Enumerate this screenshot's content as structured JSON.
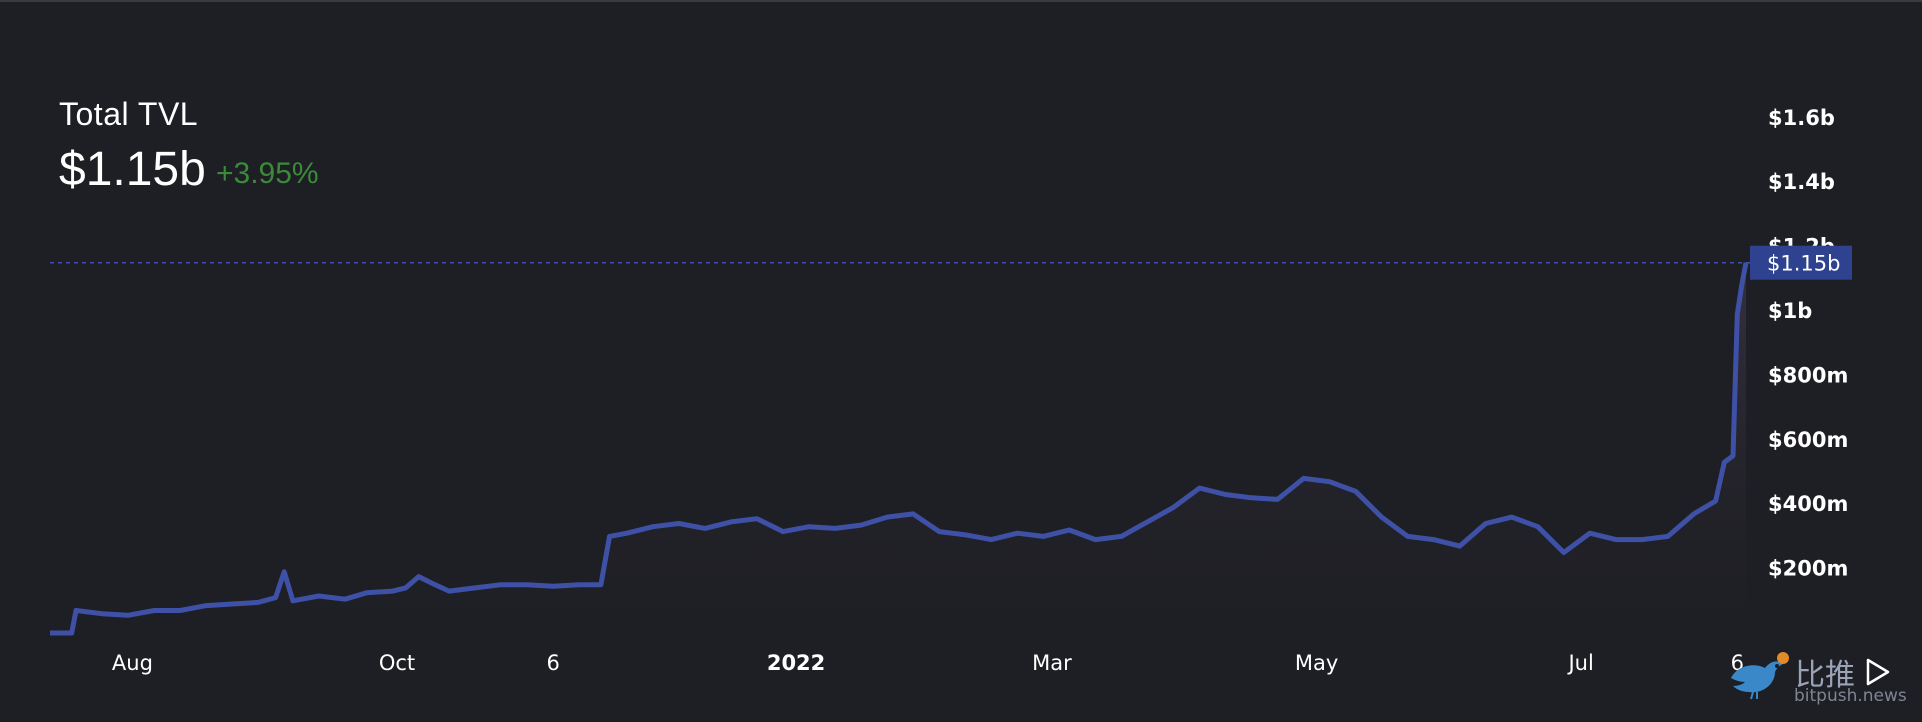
{
  "header": {
    "title": "Total TVL",
    "value": "$1.15b",
    "change": "+3.95%"
  },
  "colors": {
    "background": "#1e1f24",
    "line": "#3e51a6",
    "marker_bg": "#2f4290",
    "change_positive": "#3a8a3a",
    "axis_text": "#ffffff"
  },
  "watermark": {
    "text": "比推",
    "url": "bitpush.news",
    "logo_icon": "bird-logo-icon"
  },
  "controls": {
    "play_icon": "play-icon"
  },
  "chart_data": {
    "type": "area",
    "title": "Total TVL",
    "xlabel": "",
    "ylabel": "",
    "ylim": [
      0,
      1700000000
    ],
    "grid": false,
    "y_axis_position": "right",
    "y_ticks": [
      "$200m",
      "$400m",
      "$600m",
      "$800m",
      "$1b",
      "$1.2b",
      "$1.4b",
      "$1.6b"
    ],
    "y_tick_values": [
      200000000,
      400000000,
      600000000,
      800000000,
      1000000000,
      1200000000,
      1400000000,
      1600000000
    ],
    "x_ticks": [
      {
        "label": "Aug",
        "date": "2021-08-01",
        "bold": false
      },
      {
        "label": "Oct",
        "date": "2021-10-01",
        "bold": false
      },
      {
        "label": "6",
        "date": "2021-11-06",
        "bold": false
      },
      {
        "label": "2022",
        "date": "2022-01-01",
        "bold": true
      },
      {
        "label": "Mar",
        "date": "2022-03-01",
        "bold": false
      },
      {
        "label": "May",
        "date": "2022-05-01",
        "bold": false
      },
      {
        "label": "Jul",
        "date": "2022-07-01",
        "bold": false
      },
      {
        "label": "6",
        "date": "2022-08-06",
        "bold": false
      }
    ],
    "x_range": [
      "2021-07-13",
      "2022-08-08"
    ],
    "current_marker": {
      "label": "$1.15b",
      "value": 1150000000
    },
    "series": [
      {
        "points": [
          [
            "2021-07-13",
            0
          ],
          [
            "2021-07-18",
            0
          ],
          [
            "2021-07-19",
            70000000
          ],
          [
            "2021-07-25",
            60000000
          ],
          [
            "2021-07-31",
            55000000
          ],
          [
            "2021-08-06",
            70000000
          ],
          [
            "2021-08-12",
            70000000
          ],
          [
            "2021-08-18",
            85000000
          ],
          [
            "2021-08-24",
            90000000
          ],
          [
            "2021-08-30",
            95000000
          ],
          [
            "2021-09-03",
            110000000
          ],
          [
            "2021-09-05",
            190000000
          ],
          [
            "2021-09-07",
            100000000
          ],
          [
            "2021-09-13",
            115000000
          ],
          [
            "2021-09-19",
            105000000
          ],
          [
            "2021-09-24",
            125000000
          ],
          [
            "2021-09-30",
            130000000
          ],
          [
            "2021-10-03",
            140000000
          ],
          [
            "2021-10-06",
            175000000
          ],
          [
            "2021-10-09",
            155000000
          ],
          [
            "2021-10-13",
            130000000
          ],
          [
            "2021-10-19",
            140000000
          ],
          [
            "2021-10-25",
            150000000
          ],
          [
            "2021-10-31",
            150000000
          ],
          [
            "2021-11-06",
            145000000
          ],
          [
            "2021-11-12",
            150000000
          ],
          [
            "2021-11-17",
            150000000
          ],
          [
            "2021-11-19",
            300000000
          ],
          [
            "2021-11-23",
            310000000
          ],
          [
            "2021-11-29",
            330000000
          ],
          [
            "2021-12-05",
            340000000
          ],
          [
            "2021-12-11",
            325000000
          ],
          [
            "2021-12-17",
            345000000
          ],
          [
            "2021-12-23",
            355000000
          ],
          [
            "2021-12-29",
            315000000
          ],
          [
            "2022-01-04",
            330000000
          ],
          [
            "2022-01-10",
            325000000
          ],
          [
            "2022-01-16",
            335000000
          ],
          [
            "2022-01-22",
            360000000
          ],
          [
            "2022-01-28",
            370000000
          ],
          [
            "2022-02-03",
            315000000
          ],
          [
            "2022-02-09",
            305000000
          ],
          [
            "2022-02-15",
            290000000
          ],
          [
            "2022-02-21",
            310000000
          ],
          [
            "2022-02-27",
            300000000
          ],
          [
            "2022-03-05",
            320000000
          ],
          [
            "2022-03-11",
            290000000
          ],
          [
            "2022-03-17",
            300000000
          ],
          [
            "2022-03-23",
            345000000
          ],
          [
            "2022-03-29",
            390000000
          ],
          [
            "2022-04-04",
            450000000
          ],
          [
            "2022-04-10",
            430000000
          ],
          [
            "2022-04-16",
            420000000
          ],
          [
            "2022-04-22",
            415000000
          ],
          [
            "2022-04-28",
            480000000
          ],
          [
            "2022-05-04",
            470000000
          ],
          [
            "2022-05-10",
            440000000
          ],
          [
            "2022-05-16",
            360000000
          ],
          [
            "2022-05-22",
            300000000
          ],
          [
            "2022-05-28",
            290000000
          ],
          [
            "2022-06-03",
            270000000
          ],
          [
            "2022-06-09",
            340000000
          ],
          [
            "2022-06-15",
            360000000
          ],
          [
            "2022-06-21",
            330000000
          ],
          [
            "2022-06-27",
            250000000
          ],
          [
            "2022-07-03",
            310000000
          ],
          [
            "2022-07-09",
            290000000
          ],
          [
            "2022-07-15",
            290000000
          ],
          [
            "2022-07-21",
            300000000
          ],
          [
            "2022-07-27",
            370000000
          ],
          [
            "2022-08-01",
            410000000
          ],
          [
            "2022-08-03",
            530000000
          ],
          [
            "2022-08-05",
            550000000
          ],
          [
            "2022-08-06",
            990000000
          ],
          [
            "2022-08-07",
            1080000000
          ],
          [
            "2022-08-08",
            1150000000
          ]
        ]
      }
    ]
  }
}
